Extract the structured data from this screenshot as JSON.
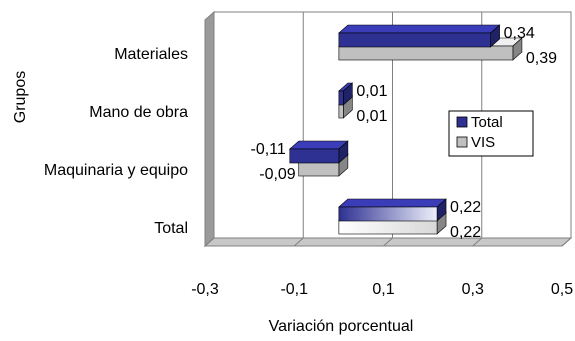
{
  "chart_data": {
    "type": "bar",
    "orientation": "horizontal",
    "title": "",
    "xlabel": "Variación porcentual",
    "ylabel": "Grupos",
    "categories": [
      "Materiales",
      "Mano de obra",
      "Maquinaria y equipo",
      "Total"
    ],
    "series": [
      {
        "name": "Total",
        "values": [
          0.34,
          0.01,
          -0.11,
          0.22
        ],
        "labels": [
          "0,34",
          "0,01",
          "-0,11",
          "0,22"
        ],
        "color": "#2E3192"
      },
      {
        "name": "VIS",
        "values": [
          0.39,
          0.01,
          -0.09,
          0.22
        ],
        "labels": [
          "0,39",
          "0,01",
          "-0,09",
          "0,22"
        ],
        "color": "#C0C0C0"
      }
    ],
    "xlim": [
      -0.3,
      0.5
    ],
    "xticks": [
      -0.3,
      -0.1,
      0.1,
      0.3,
      0.5
    ],
    "xtick_labels": [
      "-0,3",
      "-0,1",
      "0,1",
      "0,3",
      "0,5"
    ],
    "grid": true,
    "legend_position": "right"
  }
}
